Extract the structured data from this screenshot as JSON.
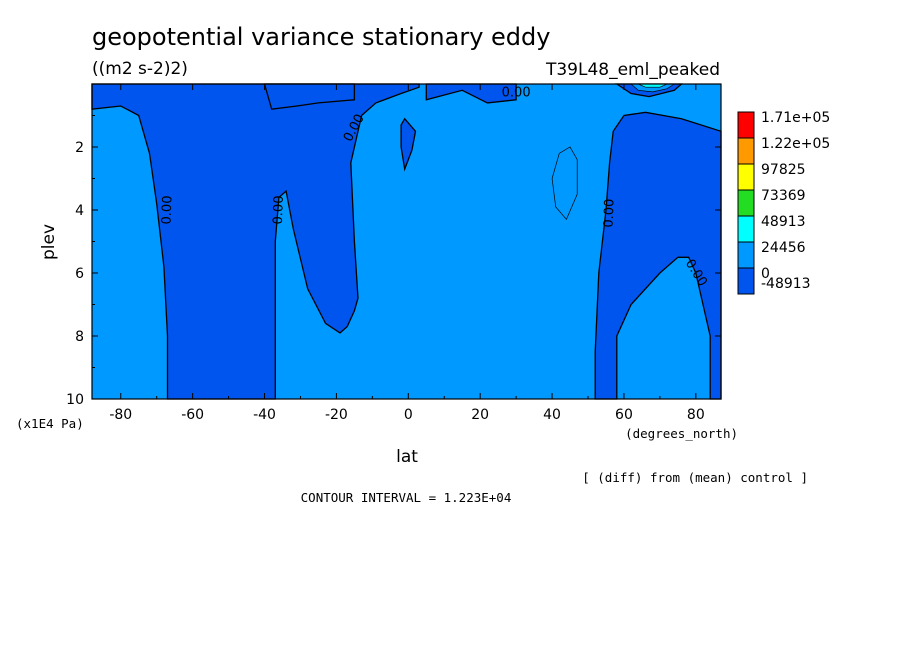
{
  "title": "geopotential variance stationary eddy",
  "units": "((m2 s-2)2)",
  "experiment": "T39L48_eml_peaked",
  "contour_interval": "CONTOUR INTERVAL = 1.223E+04",
  "diff_note": "[ (diff) from (mean) control ]",
  "chart_data": {
    "type": "heatmap",
    "xlabel": "lat",
    "xunits": "(degrees_north)",
    "ylabel": "plev",
    "yunits": "(x1E4 Pa)",
    "xlim": [
      -88,
      87
    ],
    "ylim": [
      10,
      0
    ],
    "x_ticks": [
      -80,
      -60,
      -40,
      -20,
      0,
      20,
      40,
      60,
      80
    ],
    "y_ticks": [
      2,
      4,
      6,
      8,
      10
    ],
    "colorbar": {
      "levels": [
        "1.71e+05",
        "1.22e+05",
        "97825",
        "73369",
        "48913",
        "24456",
        "0",
        "-48913"
      ],
      "colors": [
        "#ff0000",
        "#ff9900",
        "#ffff00",
        "#22dd22",
        "#00ffff",
        "#0099ff",
        "#0055ee"
      ]
    },
    "contour_labels": [
      "0.00",
      "0.00",
      "0.00",
      "0.00",
      "0.00",
      "0.00"
    ],
    "regions": [
      {
        "level": "<0",
        "points": [
          [
            -88,
            0
          ],
          [
            -88,
            0.8
          ],
          [
            -80,
            0.7
          ],
          [
            -75,
            1.0
          ],
          [
            -72,
            2.2
          ],
          [
            -70,
            3.8
          ],
          [
            -68,
            5.8
          ],
          [
            -67,
            8.0
          ],
          [
            -67,
            10
          ],
          [
            -37,
            10
          ],
          [
            -37,
            7.0
          ],
          [
            -37,
            5.0
          ],
          [
            -36,
            3.6
          ],
          [
            -34,
            3.4
          ],
          [
            -32,
            4.6
          ],
          [
            -28,
            6.5
          ],
          [
            -23,
            7.6
          ],
          [
            -19,
            7.9
          ],
          [
            -17,
            7.7
          ],
          [
            -15,
            7.2
          ],
          [
            -14,
            6.8
          ],
          [
            -15,
            5.0
          ],
          [
            -16,
            2.5
          ],
          [
            -13,
            1.0
          ],
          [
            -9,
            0.6
          ],
          [
            -2,
            0.3
          ],
          [
            3,
            0.1
          ],
          [
            3,
            0
          ]
        ]
      },
      {
        "level": "<0",
        "points": [
          [
            -40,
            0
          ],
          [
            -38,
            0.8
          ],
          [
            -31,
            0.7
          ],
          [
            -25,
            0.6
          ],
          [
            -15,
            0.5
          ],
          [
            -15,
            0
          ]
        ]
      },
      {
        "level": "<0",
        "points": [
          [
            5,
            0
          ],
          [
            5,
            0.5
          ],
          [
            15,
            0.2
          ],
          [
            22,
            0.6
          ],
          [
            30,
            0.5
          ],
          [
            30,
            0
          ]
        ]
      },
      {
        "level": "<0",
        "points": [
          [
            -2,
            1.3
          ],
          [
            -1,
            1.1
          ],
          [
            2,
            1.5
          ],
          [
            1,
            2.1
          ],
          [
            -1,
            2.7
          ],
          [
            -2,
            2.0
          ]
        ]
      },
      {
        "level": "<0",
        "points": [
          [
            52,
            10
          ],
          [
            52,
            8.5
          ],
          [
            53,
            6.0
          ],
          [
            55,
            4.0
          ],
          [
            56,
            2.5
          ],
          [
            57,
            1.5
          ],
          [
            60,
            1.0
          ],
          [
            66,
            0.9
          ],
          [
            76,
            1.1
          ],
          [
            87,
            1.5
          ],
          [
            87,
            10
          ],
          [
            84,
            10
          ],
          [
            84,
            8.0
          ],
          [
            82,
            7.0
          ],
          [
            80,
            6.0
          ],
          [
            78,
            5.5
          ],
          [
            75,
            5.5
          ],
          [
            70,
            6.0
          ],
          [
            62,
            7.0
          ],
          [
            58,
            8.0
          ],
          [
            58,
            10
          ]
        ]
      },
      {
        "level": "<0",
        "points": [
          [
            58,
            0
          ],
          [
            62,
            0.3
          ],
          [
            67,
            0.4
          ],
          [
            74,
            0.2
          ],
          [
            76,
            0
          ]
        ]
      },
      {
        "level": "0-24456",
        "points": [
          [
            62,
            0
          ],
          [
            64,
            0.2
          ],
          [
            68,
            0.25
          ],
          [
            72,
            0.15
          ],
          [
            74,
            0
          ]
        ]
      },
      {
        "level": "24456-48913",
        "points": [
          [
            64,
            0
          ],
          [
            66,
            0.1
          ],
          [
            70,
            0.1
          ],
          [
            72,
            0
          ]
        ]
      },
      {
        "level": "0-24456",
        "points": [
          [
            40,
            3.0
          ],
          [
            42,
            2.2
          ],
          [
            45,
            2.0
          ],
          [
            47,
            2.4
          ],
          [
            47,
            3.5
          ],
          [
            44,
            4.3
          ],
          [
            41,
            3.9
          ]
        ]
      }
    ]
  }
}
